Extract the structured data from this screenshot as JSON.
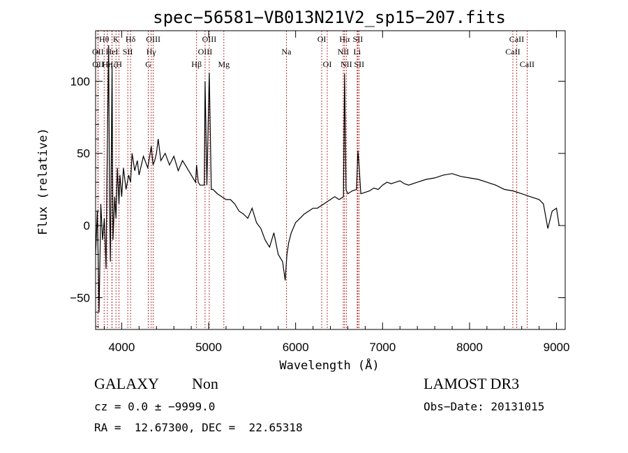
{
  "chart_data": {
    "type": "line",
    "title": "spec−56581−VB013N21V2_sp15−207.fits",
    "xlabel": "Wavelength (Å)",
    "ylabel": "Flux (relative)",
    "xlim": [
      3700,
      9100
    ],
    "ylim": [
      -72,
      135
    ],
    "xticks": [
      4000,
      5000,
      6000,
      7000,
      8000,
      9000
    ],
    "yticks": [
      -50,
      0,
      50,
      100
    ],
    "xtick_labels": [
      "4000",
      "5000",
      "6000",
      "7000",
      "8000",
      "9000"
    ],
    "ytick_labels": [
      "−50",
      "0",
      "50",
      "100"
    ],
    "line_color": "#000000",
    "marker_color": "#b00000",
    "series": [
      {
        "x": [
          3700,
          3720,
          3740,
          3760,
          3780,
          3800,
          3820,
          3830,
          3850,
          3860,
          3870,
          3889,
          3900,
          3920,
          3934,
          3950,
          3969,
          3980,
          4000,
          4020,
          4050,
          4080,
          4102,
          4120,
          4150,
          4180,
          4200,
          4250,
          4300,
          4340,
          4360,
          4380,
          4400,
          4420,
          4450,
          4480,
          4500,
          4550,
          4600,
          4650,
          4700,
          4750,
          4800,
          4850,
          4861,
          4880,
          4900,
          4950,
          4959,
          4980,
          5007,
          5030,
          5050,
          5100,
          5150,
          5200,
          5250,
          5300,
          5350,
          5400,
          5450,
          5500,
          5550,
          5600,
          5650,
          5700,
          5750,
          5800,
          5850,
          5880,
          5900,
          5920,
          5950,
          6000,
          6050,
          6100,
          6150,
          6200,
          6250,
          6300,
          6350,
          6400,
          6450,
          6500,
          6550,
          6563,
          6580,
          6600,
          6650,
          6700,
          6716,
          6731,
          6750,
          6800,
          6850,
          6900,
          6950,
          7000,
          7050,
          7100,
          7150,
          7200,
          7250,
          7300,
          7400,
          7500,
          7600,
          7700,
          7800,
          7900,
          8000,
          8100,
          8200,
          8300,
          8400,
          8500,
          8600,
          8700,
          8800,
          8850,
          8900,
          8950,
          9000,
          9030
        ],
        "y": [
          -20,
          10,
          -60,
          15,
          -10,
          5,
          -30,
          30,
          125,
          20,
          -25,
          110,
          -10,
          20,
          5,
          40,
          15,
          35,
          20,
          40,
          25,
          35,
          30,
          50,
          38,
          45,
          35,
          48,
          40,
          55,
          42,
          45,
          50,
          60,
          45,
          48,
          50,
          42,
          48,
          38,
          45,
          40,
          35,
          30,
          42,
          30,
          28,
          28,
          100,
          28,
          106,
          25,
          25,
          22,
          20,
          18,
          18,
          15,
          10,
          8,
          5,
          12,
          2,
          -2,
          -10,
          -15,
          -5,
          -20,
          -25,
          -38,
          -20,
          -12,
          -5,
          2,
          5,
          8,
          10,
          12,
          12,
          14,
          16,
          18,
          20,
          18,
          20,
          105,
          25,
          22,
          24,
          25,
          52,
          40,
          22,
          23,
          24,
          26,
          25,
          28,
          30,
          29,
          30,
          31,
          29,
          28,
          30,
          32,
          33,
          35,
          36,
          34,
          33,
          32,
          30,
          28,
          25,
          24,
          22,
          20,
          18,
          15,
          -2,
          10,
          12,
          0
        ]
      }
    ],
    "lines": [
      {
        "name": "OII",
        "wave": 3727,
        "row": 1
      },
      {
        "name": "OII",
        "wave": 3729,
        "row": 2
      },
      {
        "name": "Hθ",
        "wave": 3798,
        "row": 0
      },
      {
        "name": "Hη",
        "wave": 3836,
        "row": 2
      },
      {
        "name": "Hζ",
        "wave": 3889,
        "row": 2
      },
      {
        "name": "K",
        "wave": 3934,
        "row": 0
      },
      {
        "name": "HeI",
        "wave": 3889,
        "row": 1
      },
      {
        "name": "H",
        "wave": 3969,
        "row": 2
      },
      {
        "name": "SII",
        "wave": 4070,
        "row": 1
      },
      {
        "name": "Hδ",
        "wave": 4102,
        "row": 0
      },
      {
        "name": "Hγ",
        "wave": 4340,
        "row": 1
      },
      {
        "name": "G",
        "wave": 4305,
        "row": 2
      },
      {
        "name": "OIII",
        "wave": 4363,
        "row": 0
      },
      {
        "name": "Hβ",
        "wave": 4861,
        "row": 2
      },
      {
        "name": "OIII",
        "wave": 4959,
        "row": 1
      },
      {
        "name": "OIII",
        "wave": 5007,
        "row": 0
      },
      {
        "name": "Mg",
        "wave": 5175,
        "row": 2
      },
      {
        "name": "Na",
        "wave": 5894,
        "row": 1
      },
      {
        "name": "OI",
        "wave": 6300,
        "row": 0
      },
      {
        "name": "OI",
        "wave": 6364,
        "row": 2
      },
      {
        "name": "NII",
        "wave": 6548,
        "row": 1
      },
      {
        "name": "Hα",
        "wave": 6563,
        "row": 0
      },
      {
        "name": "NII",
        "wave": 6583,
        "row": 2
      },
      {
        "name": "SII",
        "wave": 6716,
        "row": 0
      },
      {
        "name": "Li",
        "wave": 6708,
        "row": 1
      },
      {
        "name": "SII",
        "wave": 6731,
        "row": 2
      },
      {
        "name": "CaII",
        "wave": 8498,
        "row": 1
      },
      {
        "name": "CaII",
        "wave": 8542,
        "row": 0
      },
      {
        "name": "CaII",
        "wave": 8662,
        "row": 2
      }
    ]
  },
  "info": {
    "class": "GALAXY",
    "subclass": "Non",
    "cz": "cz = 0.0 ± −9999.0",
    "radec": "RA =  12.67300, DEC =  22.65318",
    "survey": "LAMOST DR3",
    "obsdate": "Obs−Date: 20131015"
  }
}
